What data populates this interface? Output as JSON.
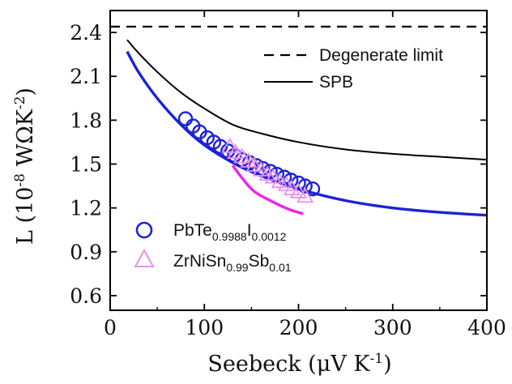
{
  "chart_data": {
    "type": "line",
    "xlabel": "Seebeck (μV K",
    "xlabel_sup": "-1",
    "xlabel_tail": ")",
    "ylabel_prefix": "L (10",
    "ylabel_exp1": "-8",
    "ylabel_mid": " WΩK",
    "ylabel_exp2": "-2",
    "ylabel_tail": ")",
    "xlim": [
      0,
      400
    ],
    "ylim": [
      0.5,
      2.55
    ],
    "x_ticks": [
      0,
      100,
      200,
      300,
      400
    ],
    "y_ticks": [
      0.6,
      0.9,
      1.2,
      1.5,
      1.8,
      2.1,
      2.4
    ],
    "y_tick_labels": [
      "0.6",
      "0.9",
      "1.2",
      "1.5",
      "1.8",
      "2.1",
      "2.4"
    ],
    "x_tick_labels": [
      "0",
      "100",
      "200",
      "300",
      "400"
    ],
    "grid": false,
    "colors": {
      "blue": "#1c22d6",
      "magenta": "#ee22ee",
      "black": "#000000",
      "light_magenta": "#e890f0"
    },
    "legend_top": [
      {
        "label": "Degenerate limit",
        "style": "dashed"
      },
      {
        "label": "SPB",
        "style": "solid"
      }
    ],
    "legend_bottom": [
      {
        "base": "PbTe",
        "sub1": "0.9988",
        "mid": "I",
        "sub2": "0.0012",
        "marker": "circle"
      },
      {
        "base": "ZrNiSn",
        "sub1": "0.99",
        "mid": "Sb",
        "sub2": "0.01",
        "marker": "triangle"
      }
    ],
    "series": [
      {
        "style": "dashed",
        "color": "#000000",
        "x": [
          0,
          400
        ],
        "y": [
          2.44,
          2.44
        ]
      },
      {
        "style": "solid",
        "color": "#000000",
        "x": [
          18,
          30,
          50,
          75,
          100,
          130,
          160,
          200,
          250,
          300,
          350,
          400
        ],
        "y": [
          2.35,
          2.26,
          2.13,
          1.99,
          1.88,
          1.77,
          1.71,
          1.65,
          1.6,
          1.57,
          1.55,
          1.53
        ]
      },
      {
        "style": "solid",
        "color": "#1c22d6",
        "x": [
          18,
          30,
          50,
          75,
          100,
          130,
          160,
          200,
          250,
          300,
          350,
          400
        ],
        "y": [
          2.27,
          2.13,
          1.95,
          1.77,
          1.63,
          1.51,
          1.42,
          1.33,
          1.25,
          1.2,
          1.17,
          1.15
        ]
      },
      {
        "style": "solid",
        "color": "#ee22ee",
        "x": [
          130,
          150,
          170,
          190,
          205
        ],
        "y": [
          1.49,
          1.33,
          1.25,
          1.19,
          1.16
        ]
      },
      {
        "style": "circles",
        "color": "#1c22d6",
        "x": [
          80,
          88,
          95,
          103,
          110,
          117,
          125,
          132,
          140,
          148,
          155,
          162,
          170,
          177,
          185,
          192,
          200,
          207,
          215
        ],
        "y": [
          1.81,
          1.76,
          1.72,
          1.68,
          1.65,
          1.62,
          1.59,
          1.56,
          1.53,
          1.51,
          1.49,
          1.47,
          1.45,
          1.43,
          1.41,
          1.39,
          1.37,
          1.35,
          1.33
        ]
      },
      {
        "style": "triangles",
        "color": "#e890f0",
        "x": [
          127,
          133,
          140,
          147,
          153,
          160,
          167,
          173,
          180,
          187,
          193,
          200,
          207
        ],
        "y": [
          1.62,
          1.58,
          1.55,
          1.52,
          1.49,
          1.46,
          1.43,
          1.41,
          1.38,
          1.36,
          1.33,
          1.31,
          1.28
        ]
      }
    ]
  }
}
